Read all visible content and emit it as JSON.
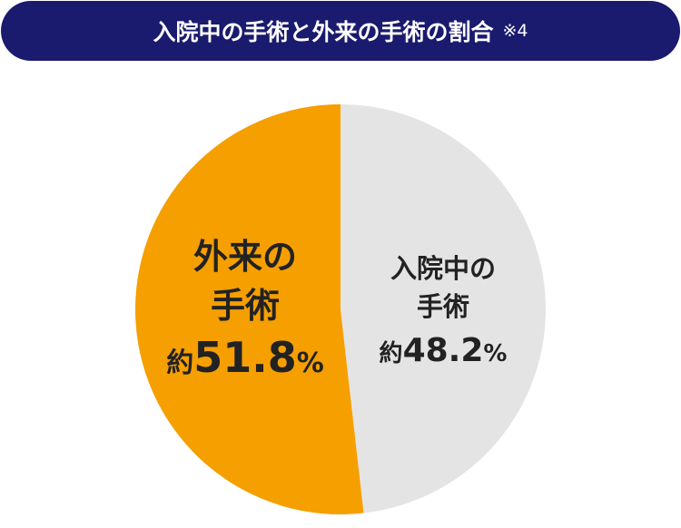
{
  "header": {
    "title": "入院中の手術と外来の手術の割合",
    "note": "※4"
  },
  "colors": {
    "title_bg": "#1a1a6e",
    "outpatient": "#f59f00",
    "inpatient": "#e4e4e4",
    "text": "#222222"
  },
  "chart_data": {
    "type": "pie",
    "title": "入院中の手術と外来の手術の割合",
    "slices": [
      {
        "name_line1": "入院中の",
        "name_line2": "手術",
        "prefix": "約",
        "value": 48.2,
        "value_label": "48.2",
        "unit": "%",
        "color": "#e4e4e4"
      },
      {
        "name_line1": "外来の",
        "name_line2": "手術",
        "prefix": "約",
        "value": 51.8,
        "value_label": "51.8",
        "unit": "%",
        "color": "#f59f00"
      }
    ]
  }
}
